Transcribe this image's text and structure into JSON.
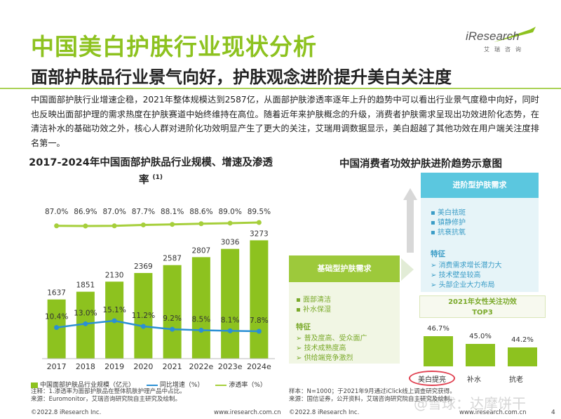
{
  "header": {
    "title": "中国美白护肤行业现状分析",
    "logo_brand": "iResearch",
    "logo_sub": "艾瑞咨询",
    "subtitle": "面部护肤品行业景气向好，护肤观念进阶提升美白关注度"
  },
  "intro": "中国面部护肤行业增速企稳，2021年整体规模达到2587亿，从面部护肤渗透率逐年上升的趋势中可以看出行业景气度稳中向好，同时也反映出面部护理的需求热度在护肤赛道中始终维持在高位。随着近年来护肤概念的升级，消费者护肤需求呈现出功效进阶化态势，在清洁补水的基础功效之外，核心人群对进阶化功效明显产生了更大的关注，艾瑞用调数据显示，美白超越了其他功效在用户端关注度排名第一。",
  "left_chart_title": "2017-2024年中国面部护肤品行业规模、增速及渗透率",
  "left_chart_title_sup": "(1)",
  "chart_data": {
    "type": "bar",
    "categories": [
      "2017",
      "2018",
      "2019",
      "2020",
      "2021",
      "2022e",
      "2023e",
      "2024e"
    ],
    "series": [
      {
        "name": "中国面部护肤品行业规模（亿元）",
        "type": "bar",
        "values": [
          1637,
          1851,
          2130,
          2369,
          2587,
          2807,
          3036,
          3273
        ],
        "labels": [
          "1637",
          "1851",
          "2130",
          "2369",
          "2587",
          "2807",
          "3036",
          "3273"
        ],
        "color": "#8dc21f"
      },
      {
        "name": "同比增速（%）",
        "type": "line",
        "values": [
          10.4,
          13.0,
          15.1,
          11.2,
          9.2,
          8.5,
          8.1,
          7.8
        ],
        "labels": [
          "10.4%",
          "13.0%",
          "15.1%",
          "11.2%",
          "9.2%",
          "8.5%",
          "8.1%",
          "7.8%"
        ],
        "color": "#2a8fd4"
      },
      {
        "name": "渗透率（%）",
        "type": "line",
        "values": [
          87.0,
          86.9,
          87.0,
          87.7,
          88.1,
          88.6,
          89.0,
          89.5
        ],
        "labels": [
          "87.0%",
          "86.9%",
          "87.0%",
          "87.7%",
          "88.1%",
          "88.6%",
          "89.0%",
          "89.5%"
        ],
        "color": "#a6cf3b"
      }
    ]
  },
  "notes_left": [
    "注释：1.渗透率为面部护肤品在整体肌肤护理产品中占比。",
    "来源：Euromonitor，艾瑞咨询研究院自主研究及绘制。"
  ],
  "right_chart_title": "中国消费者功效护肤进阶趋势示意图",
  "advanced": {
    "header": "进阶型护肤需求",
    "items": [
      "美白祛斑",
      "镇静修护",
      "抗衰抗氧"
    ],
    "feature_head": "特征",
    "features": [
      "消费需求增长潜力大",
      "技术壁垒较高",
      "头部企业大力布局"
    ]
  },
  "basic": {
    "header": "基础型护肤需求",
    "items": [
      "面部清洁",
      "补水保湿"
    ],
    "feature_head": "特征",
    "features": [
      "普及度高、受众面广",
      "技术成熟度高",
      "供给端竞争激烈"
    ]
  },
  "top3": {
    "title_line1": "2021年女性关注功效",
    "title_line2": "TOP3",
    "categories": [
      "美白提亮",
      "补水",
      "抗老"
    ],
    "values": [
      46.7,
      45.0,
      44.2
    ],
    "labels": [
      "46.7%",
      "45.0%",
      "44.2%"
    ]
  },
  "notes_right": [
    "样本：N=1000；于2021年9月通过iClick线上调查研究获得。",
    "来源：国信证券，公开资料，艾瑞咨询研究院自主研究及绘制。"
  ],
  "footer": {
    "copyright_left": "©2022.8 iResearch Inc.",
    "url_mid": "www.iresearch.com.cn",
    "copyright_right": "©2022.8 iResearch Inc.",
    "url_right": "www.iresearch.com.cn",
    "page": "4"
  },
  "colors": {
    "brand_green": "#8dc21f",
    "brand_blue": "#5bc7df",
    "growth_line": "#2a8fd4",
    "highlight": "#e04050"
  }
}
